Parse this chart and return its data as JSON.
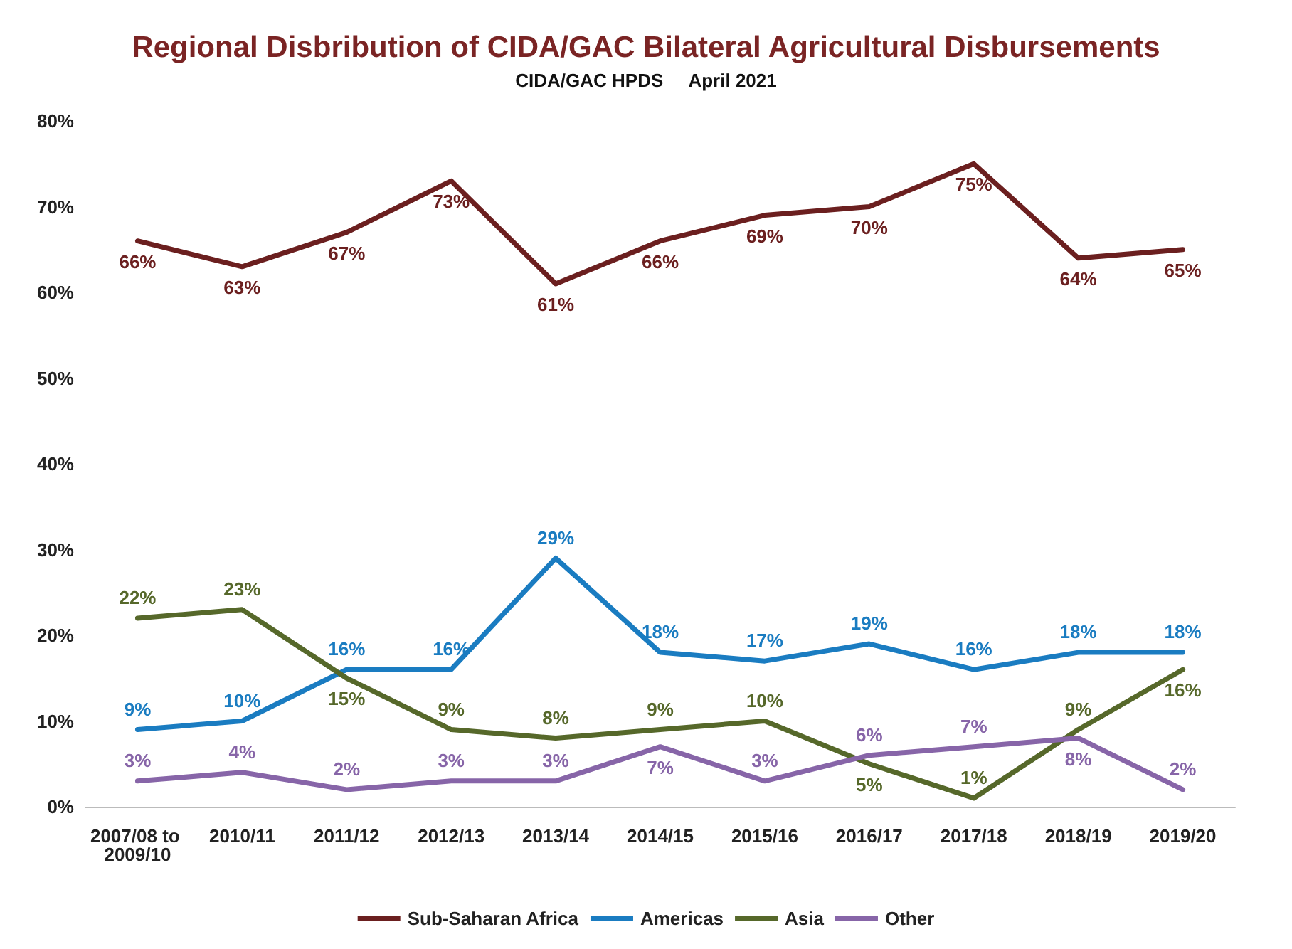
{
  "chart_data": {
    "type": "line",
    "title": "Regional Disbribution of CIDA/GAC Bilateral Agricultural Disbursements",
    "subtitle": "CIDA/GAC HPDS     April 2021",
    "categories": [
      "2007/08 to 2009/10",
      "2010/11",
      "2011/12",
      "2012/13",
      "2013/14",
      "2014/15",
      "2015/16",
      "2016/17",
      "2017/18",
      "2018/19",
      "2019/20"
    ],
    "series": [
      {
        "name": "Sub-Saharan Africa",
        "color": "#6b1f1f",
        "values": [
          66,
          63,
          67,
          73,
          61,
          66,
          69,
          70,
          75,
          64,
          65
        ],
        "value_labels": [
          "66%",
          "63%",
          "67%",
          "73%",
          "61%",
          "66%",
          "69%",
          "70%",
          "75%",
          "64%",
          "65%"
        ]
      },
      {
        "name": "Americas",
        "color": "#1a7cc1",
        "values": [
          9,
          10,
          16,
          16,
          29,
          18,
          17,
          19,
          16,
          18,
          18
        ],
        "value_labels": [
          "9%",
          "10%",
          "16%",
          "16%",
          "29%",
          "18%",
          "17%",
          "19%",
          "16%",
          "18%",
          "18%"
        ]
      },
      {
        "name": "Asia",
        "color": "#56682a",
        "values": [
          22,
          23,
          15,
          9,
          8,
          9,
          10,
          5,
          1,
          9,
          16
        ],
        "value_labels": [
          "22%",
          "23%",
          "15%",
          "9%",
          "8%",
          "9%",
          "10%",
          "5%",
          "1%",
          "9%",
          "16%"
        ]
      },
      {
        "name": "Other",
        "color": "#8765a8",
        "values": [
          3,
          4,
          2,
          3,
          3,
          7,
          3,
          6,
          7,
          8,
          2
        ],
        "value_labels": [
          "3%",
          "4%",
          "2%",
          "3%",
          "3%",
          "7%",
          "3%",
          "6%",
          "7%",
          "8%",
          "2%"
        ]
      }
    ],
    "ylim": [
      0,
      80
    ],
    "yticks": [
      {
        "value": 0,
        "label": "0%"
      },
      {
        "value": 10,
        "label": "10%"
      },
      {
        "value": 20,
        "label": "20%"
      },
      {
        "value": 30,
        "label": "30%"
      },
      {
        "value": 40,
        "label": "40%"
      },
      {
        "value": 50,
        "label": "50%"
      },
      {
        "value": 60,
        "label": "60%"
      },
      {
        "value": 70,
        "label": "70%"
      },
      {
        "value": 80,
        "label": "80%"
      }
    ],
    "legend": "bottom",
    "marker": "none",
    "line_style": "solid",
    "grid": false
  }
}
